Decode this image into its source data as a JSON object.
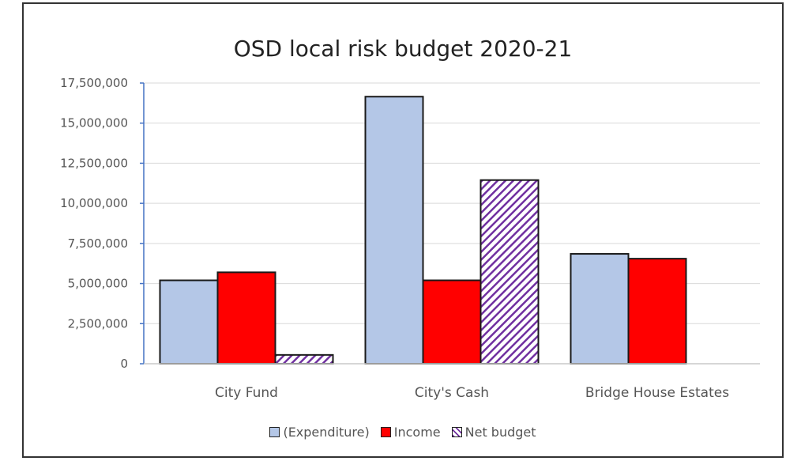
{
  "chart_data": {
    "type": "bar",
    "title": "OSD local risk budget 2020-21",
    "xlabel": "",
    "ylabel": "",
    "categories": [
      "City Fund",
      "City's Cash",
      "Bridge House Estates"
    ],
    "series": [
      {
        "name": "(Expenditure)",
        "values": [
          5200000,
          16650000,
          6850000
        ],
        "color": "#b4c7e7",
        "pattern": "solid"
      },
      {
        "name": "Income",
        "values": [
          5700000,
          5200000,
          6550000
        ],
        "color": "#ff0000",
        "pattern": "solid"
      },
      {
        "name": "Net budget",
        "values": [
          550000,
          11450000,
          0
        ],
        "color": "#7030a0",
        "pattern": "hatch"
      }
    ],
    "ylim": [
      0,
      17500000
    ],
    "yticks": [
      "0",
      "2,500,000",
      "5,000,000",
      "7,500,000",
      "10,000,000",
      "12,500,000",
      "15,000,000",
      "17,500,000"
    ],
    "ytick_values": [
      0,
      2500000,
      5000000,
      7500000,
      10000000,
      12500000,
      15000000,
      17500000
    ],
    "grid": true,
    "legend_position": "bottom"
  }
}
